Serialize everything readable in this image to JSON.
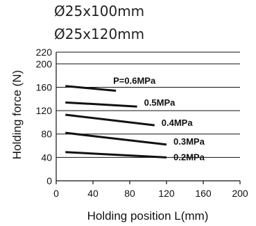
{
  "chart_data": {
    "type": "line",
    "title_lines": [
      "Ø25x100mm",
      "Ø25x120mm"
    ],
    "xlabel": "Holding position L(mm)",
    "ylabel": "Holding force (N)",
    "xlim": [
      0,
      200
    ],
    "ylim": [
      0,
      220
    ],
    "x_ticks": [
      0,
      40,
      80,
      120,
      160,
      200
    ],
    "y_ticks": [
      0,
      40,
      80,
      120,
      160,
      200,
      220
    ],
    "y_grid": [
      40,
      80,
      120,
      160,
      200,
      220
    ],
    "grid": "horizontal",
    "line_color": "#111111",
    "series": [
      {
        "name": "P=0.6MPa",
        "x": [
          10,
          65
        ],
        "y": [
          162,
          154
        ]
      },
      {
        "name": "0.5MPa",
        "x": [
          10,
          88
        ],
        "y": [
          134,
          127
        ]
      },
      {
        "name": "0.4MPa",
        "x": [
          10,
          107
        ],
        "y": [
          113,
          95
        ]
      },
      {
        "name": "0.3MPa",
        "x": [
          10,
          120
        ],
        "y": [
          82,
          62
        ]
      },
      {
        "name": "0.2MPa",
        "x": [
          10,
          120
        ],
        "y": [
          49,
          40
        ]
      }
    ]
  }
}
